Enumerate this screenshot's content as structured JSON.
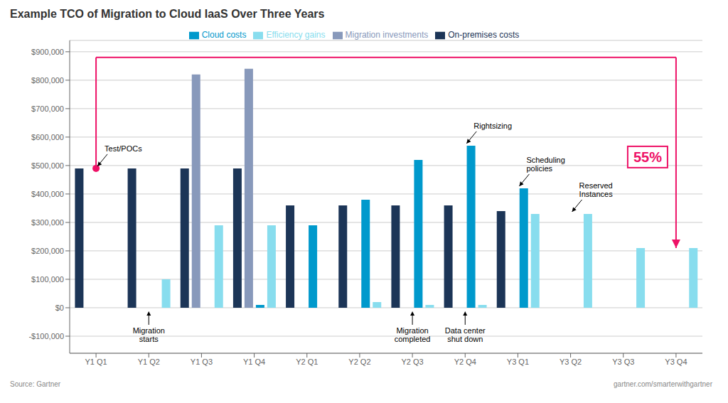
{
  "chart_data": {
    "type": "bar",
    "title": "Example TCO of Migration to Cloud IaaS Over Three Years",
    "categories": [
      "Y1 Q1",
      "Y1 Q2",
      "Y1 Q3",
      "Y1 Q4",
      "Y2 Q1",
      "Y2 Q2",
      "Y2 Q3",
      "Y2 Q4",
      "Y3 Q1",
      "Y3 Q2",
      "Y3 Q3",
      "Y3 Q4"
    ],
    "series": [
      {
        "name": "On-premises costs",
        "color": "#1c3557",
        "values": [
          490000,
          490000,
          490000,
          490000,
          360000,
          360000,
          360000,
          360000,
          340000,
          0,
          0,
          0
        ]
      },
      {
        "name": "Migration investments",
        "color": "#8899bb",
        "values": [
          0,
          0,
          820000,
          840000,
          0,
          0,
          0,
          0,
          0,
          0,
          0,
          0
        ]
      },
      {
        "name": "Cloud costs",
        "color": "#0099cc",
        "values": [
          0,
          0,
          0,
          10000,
          290000,
          380000,
          520000,
          570000,
          420000,
          0,
          0,
          0
        ]
      },
      {
        "name": "Efficiency gains",
        "color": "#88ddee",
        "values": [
          0,
          100000,
          290000,
          290000,
          0,
          20000,
          10000,
          10000,
          330000,
          330000,
          210000,
          210000
        ]
      }
    ],
    "ylim": [
      -160000,
      940000
    ],
    "yticks": [
      {
        "value": -100000,
        "label": "-$100,000"
      },
      {
        "value": 0,
        "label": "$0"
      },
      {
        "value": 100000,
        "label": "$100,000"
      },
      {
        "value": 200000,
        "label": "$200,000"
      },
      {
        "value": 300000,
        "label": "$300,000"
      },
      {
        "value": 400000,
        "label": "$400,000"
      },
      {
        "value": 500000,
        "label": "$500,000"
      },
      {
        "value": 600000,
        "label": "$600,000"
      },
      {
        "value": 700000,
        "label": "$700,000"
      },
      {
        "value": 800000,
        "label": "$800,000"
      },
      {
        "value": 900000,
        "label": "$900,000"
      }
    ],
    "grid": true,
    "legend": "top",
    "annotations": [
      {
        "text": "Test/POCs",
        "category": "Y1 Q1",
        "y": 490000
      },
      {
        "text": "Migration\nstarts",
        "category": "Y1 Q2",
        "y": -5000
      },
      {
        "text": "Migration\ncompleted",
        "category": "Y2 Q3",
        "y": -5000
      },
      {
        "text": "Data center\nshut down",
        "category": "Y2 Q4",
        "y": -5000
      },
      {
        "text": "Rightsizing",
        "category": "Y2 Q4",
        "y": 570000
      },
      {
        "text": "Scheduling\npolicies",
        "category": "Y3 Q1",
        "y": 420000
      },
      {
        "text": "Reserved\nInstances",
        "category": "Y3 Q2",
        "y": 330000
      }
    ],
    "bracket": {
      "text": "55%",
      "color": "#ee1166",
      "start": {
        "category": "Y1 Q1",
        "y": 490000
      },
      "end": {
        "category": "Y3 Q4",
        "y": 210000
      },
      "top": 880000,
      "text_y": 530000
    },
    "source": [
      "Source: Gartner",
      "gartner.com/smarterwithgartner"
    ]
  }
}
